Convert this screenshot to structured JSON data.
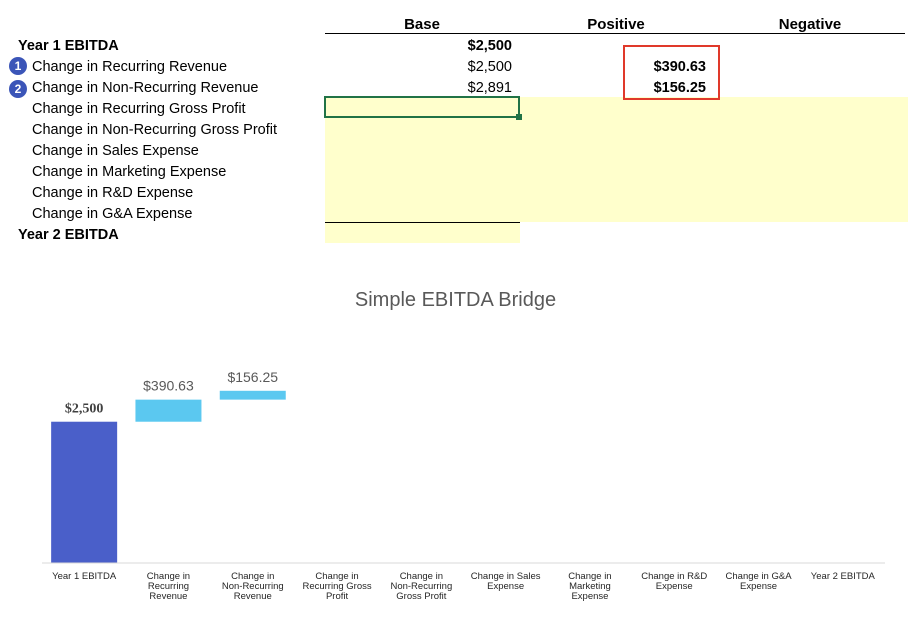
{
  "table": {
    "columns": {
      "base": "Base",
      "positive": "Positive",
      "negative": "Negative"
    },
    "rows": [
      {
        "label": "Year 1 EBITDA",
        "bold": true,
        "base": "$2,500",
        "positive": "",
        "negative": ""
      },
      {
        "label": "Change in Recurring Revenue",
        "badge": "1",
        "base": "$2,500",
        "positive": "$390.63",
        "negative": ""
      },
      {
        "label": "Change in Non-Recurring Revenue",
        "badge": "2",
        "base": "$2,891",
        "positive": "$156.25",
        "negative": ""
      },
      {
        "label": "Change in Recurring Gross Profit",
        "base": "",
        "positive": "",
        "negative": ""
      },
      {
        "label": "Change in Non-Recurring Gross Profit",
        "base": "",
        "positive": "",
        "negative": ""
      },
      {
        "label": "Change in Sales Expense",
        "base": "",
        "positive": "",
        "negative": ""
      },
      {
        "label": "Change in Marketing Expense",
        "base": "",
        "positive": "",
        "negative": ""
      },
      {
        "label": "Change in R&D Expense",
        "base": "",
        "positive": "",
        "negative": ""
      },
      {
        "label": "Change in G&A Expense",
        "base": "",
        "positive": "",
        "negative": ""
      },
      {
        "label": "Year 2 EBITDA",
        "bold": true,
        "base": "",
        "positive": "",
        "negative": ""
      }
    ]
  },
  "colors": {
    "base_bar": "#4a5fc9",
    "positive_bar": "#5bc8f0",
    "highlight_border": "#e0392a",
    "selection": "#217346",
    "input_fill": "#ffffcc"
  },
  "chart_data": {
    "type": "bar",
    "subtype": "waterfall",
    "title": "Simple EBITDA Bridge",
    "categories": [
      "Year 1 EBITDA",
      "Change in Recurring Revenue",
      "Change in Non-Recurring Revenue",
      "Change in Recurring Gross Profit",
      "Change in Non-Recurring Gross Profit",
      "Change in Sales Expense",
      "Change in Marketing Expense",
      "Change in R&D Expense",
      "Change in G&A Expense",
      "Year 2 EBITDA"
    ],
    "series": [
      {
        "role": "base_total",
        "values": [
          2500,
          null,
          null,
          null,
          null,
          null,
          null,
          null,
          null,
          null
        ]
      },
      {
        "role": "positive",
        "values": [
          null,
          390.63,
          156.25,
          null,
          null,
          null,
          null,
          null,
          null,
          null
        ]
      },
      {
        "role": "offset",
        "values": [
          null,
          2500,
          2891,
          null,
          null,
          null,
          null,
          null,
          null,
          null
        ]
      }
    ],
    "data_labels": [
      "$2,500",
      "$390.63",
      "$156.25",
      "",
      "",
      "",
      "",
      "",
      "",
      ""
    ],
    "ylim": [
      0,
      4300
    ],
    "grid": false,
    "legend": "none"
  }
}
